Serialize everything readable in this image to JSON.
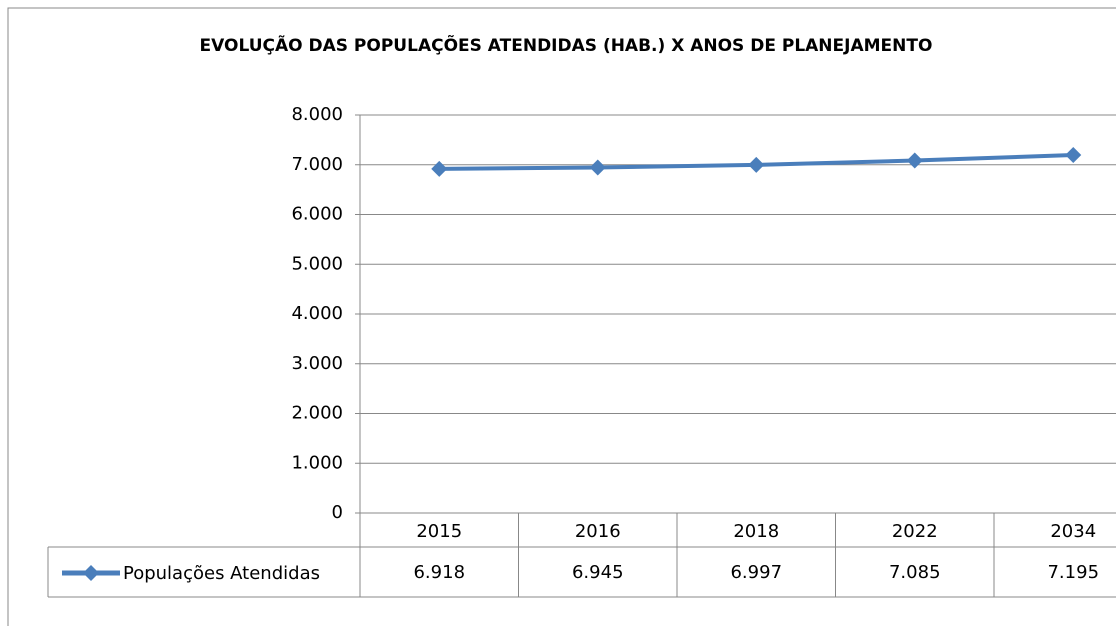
{
  "chart_data": {
    "type": "line",
    "title": "EVOLUÇÃO DAS POPULAÇÕES ATENDIDAS (HAB.) X ANOS DE PLANEJAMENTO",
    "categories": [
      "2015",
      "2016",
      "2018",
      "2022",
      "2034"
    ],
    "series": [
      {
        "name": "Populações Atendidas",
        "color": "#4a7ebb",
        "values": [
          6918,
          6945,
          6997,
          7085,
          7195
        ],
        "value_labels": [
          "6.918",
          "6.945",
          "6.997",
          "7.085",
          "7.195"
        ]
      }
    ],
    "ylim": [
      0,
      8000
    ],
    "yticks": [
      0,
      {
        "value": 1000,
        "label": "1.000"
      },
      {
        "value": 2000,
        "label": "2.000"
      },
      {
        "value": 3000,
        "label": "3.000"
      },
      {
        "value": 4000,
        "label": "4.000"
      },
      {
        "value": 5000,
        "label": "5.000"
      },
      {
        "value": 6000,
        "label": "6.000"
      },
      {
        "value": 7000,
        "label": "7.000"
      },
      {
        "value": 8000,
        "label": "8.000"
      }
    ],
    "grid": true
  }
}
